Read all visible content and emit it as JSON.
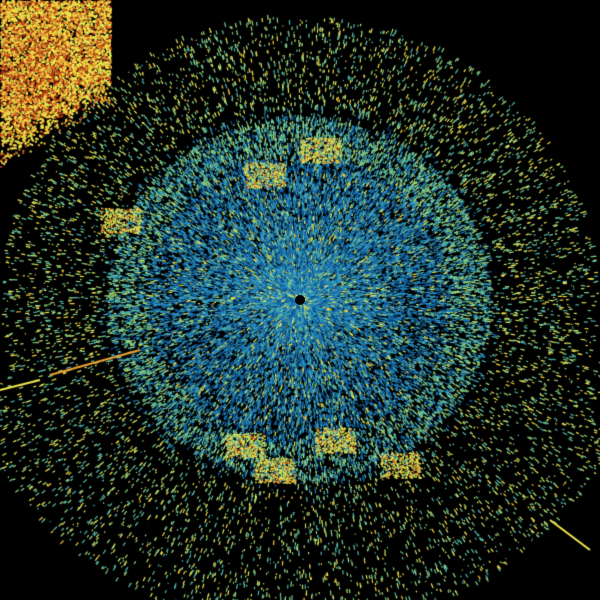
{
  "radar": {
    "background": "#000000",
    "palette": {
      "near_blue": [
        "#0a4f8a",
        "#1466a8",
        "#1f7fc0",
        "#2a93c8",
        "#3aa3c0"
      ],
      "cyan_green": [
        "#4fb8b0",
        "#6cc79a",
        "#8fd47f",
        "#b6e070"
      ],
      "yellow": [
        "#e3e65a",
        "#f2e94a",
        "#f5d23a"
      ],
      "orange_red": [
        "#f0a030",
        "#e07020",
        "#c84018",
        "#a83018"
      ]
    },
    "site_marker": "#000000"
  }
}
